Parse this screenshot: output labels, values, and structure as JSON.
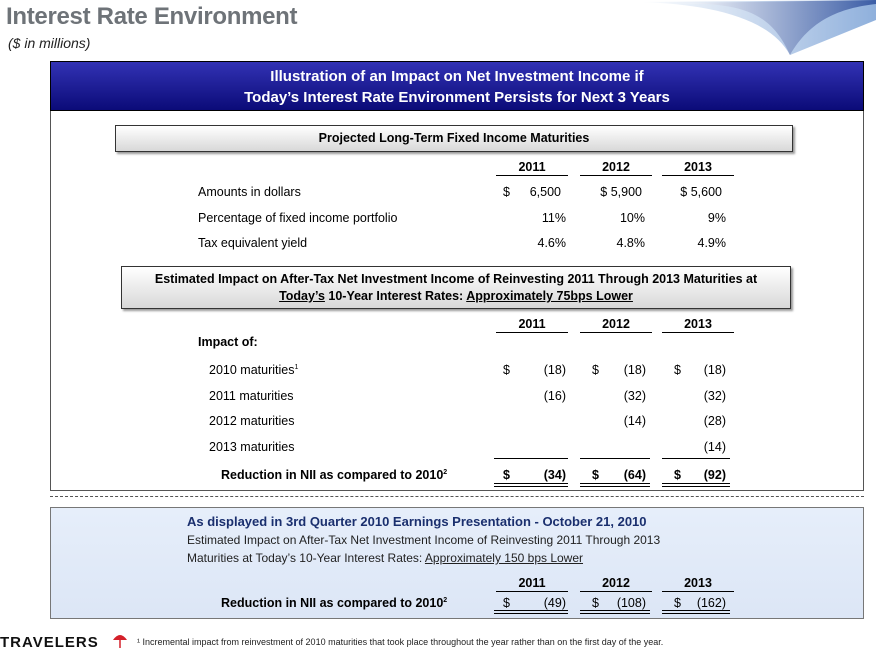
{
  "header": {
    "title": "Interest Rate Environment",
    "subtitle": "($ in millions)"
  },
  "banner": {
    "line1": "Illustration of an Impact on Net Investment Income if",
    "line2": "Today’s Interest Rate Environment Persists for Next 3 Years"
  },
  "maturities": {
    "heading": "Projected Long-Term Fixed Income Maturities",
    "years": [
      "2011",
      "2012",
      "2013"
    ],
    "rows": [
      {
        "label": "Amounts in dollars",
        "dollar": "$",
        "values": [
          "6,500",
          "$ 5,900",
          "$ 5,600"
        ]
      },
      {
        "label": "Percentage of fixed income portfolio",
        "values": [
          "11%",
          "10%",
          "9%"
        ]
      },
      {
        "label": "Tax equivalent yield",
        "values": [
          "4.6%",
          "4.8%",
          "4.9%"
        ]
      }
    ]
  },
  "impact": {
    "heading_line1": "Estimated Impact on After-Tax Net Investment Income of Reinvesting 2011 Through 2013 Maturities at",
    "heading_line2_a": "Today’s",
    "heading_line2_b": " 10-Year Interest Rates: ",
    "heading_line2_c": "Approximately 75bps Lower",
    "years": [
      "2011",
      "2012",
      "2013"
    ],
    "impact_of": "Impact of:",
    "rows": [
      {
        "label": "2010 maturities",
        "sup": "1",
        "values": [
          "(18)",
          "(18)",
          "(18)"
        ]
      },
      {
        "label": "2011 maturities",
        "values": [
          "(16)",
          "(32)",
          "(32)"
        ]
      },
      {
        "label": "2012 maturities",
        "values": [
          "",
          "(14)",
          "(28)"
        ]
      },
      {
        "label": "2013 maturities",
        "values": [
          "",
          "",
          "(14)"
        ]
      }
    ],
    "total_label": "Reduction in NII as compared to 2010",
    "total_sup": "2",
    "total_values": [
      "(34)",
      "(64)",
      "(92)"
    ],
    "dollar_sign": "$"
  },
  "previous": {
    "title": "As displayed in 3rd Quarter 2010 Earnings Presentation - October 21, 2010",
    "line1": "Estimated Impact on After-Tax Net Investment Income of Reinvesting 2011 Through 2013",
    "line2_a": "Maturities at Today’s 10-Year Interest Rates: ",
    "line2_b": "Approximately 150 bps Lower",
    "years": [
      "2011",
      "2012",
      "2013"
    ],
    "total_label": "Reduction in NII as compared to 2010",
    "total_sup": "2",
    "total_values": [
      "(49)",
      "(108)",
      "(162)"
    ]
  },
  "footer": {
    "logo": "TRAVELERS",
    "footnote": "¹ Incremental impact from reinvestment of 2010 maturities that took place throughout the year rather than on the first day of the year."
  }
}
